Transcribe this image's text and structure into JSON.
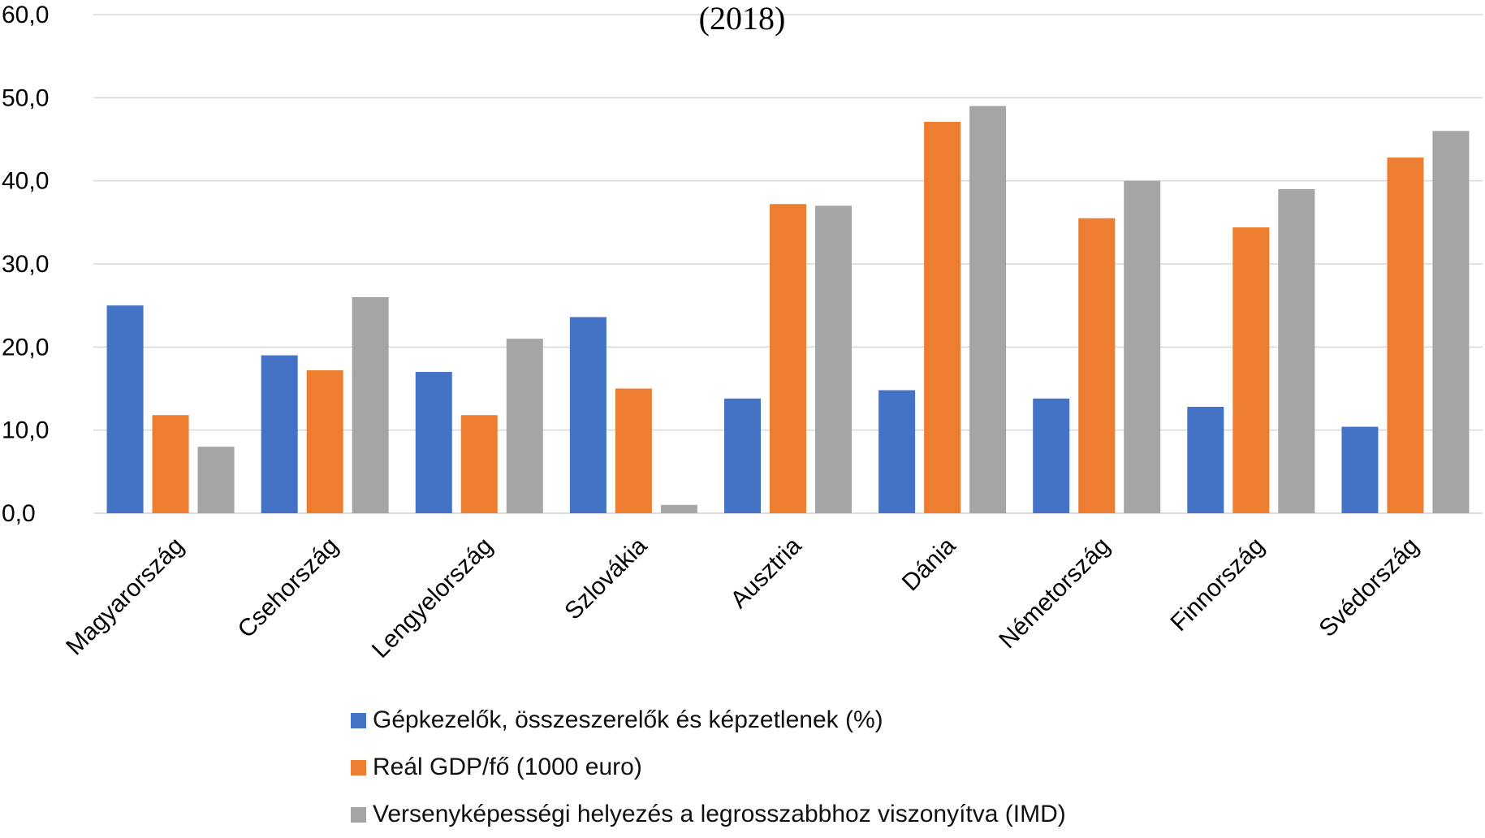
{
  "chart_data": {
    "type": "bar",
    "title": "(2018)",
    "categories": [
      "Magyarország",
      "Csehország",
      "Lengyelország",
      "Szlovákia",
      "Ausztria",
      "Dánia",
      "Németország",
      "Finnország",
      "Svédország"
    ],
    "series": [
      {
        "name": "Gépkezelők, összeszerelők és képzetlenek (%)",
        "color": "#4472C4",
        "values": [
          25.0,
          19.0,
          17.0,
          23.6,
          13.8,
          14.8,
          13.8,
          12.8,
          10.4
        ]
      },
      {
        "name": "Reál GDP/fő (1000 euro)",
        "color": "#ED7D31",
        "values": [
          11.8,
          17.2,
          11.8,
          15.0,
          37.2,
          47.1,
          35.5,
          34.4,
          42.8
        ]
      },
      {
        "name": "Versenyképességi helyezés a legrosszabbhoz viszonyítva (IMD)",
        "color": "#A5A5A5",
        "values": [
          8.0,
          26.0,
          21.0,
          1.0,
          37.0,
          49.0,
          40.0,
          39.0,
          46.0
        ]
      }
    ],
    "ylim": [
      0,
      60
    ],
    "yticks": [
      "0,0",
      "10,0",
      "20,0",
      "30,0",
      "40,0",
      "50,0",
      "60,0"
    ],
    "grid": true,
    "legend_position": "bottom"
  }
}
